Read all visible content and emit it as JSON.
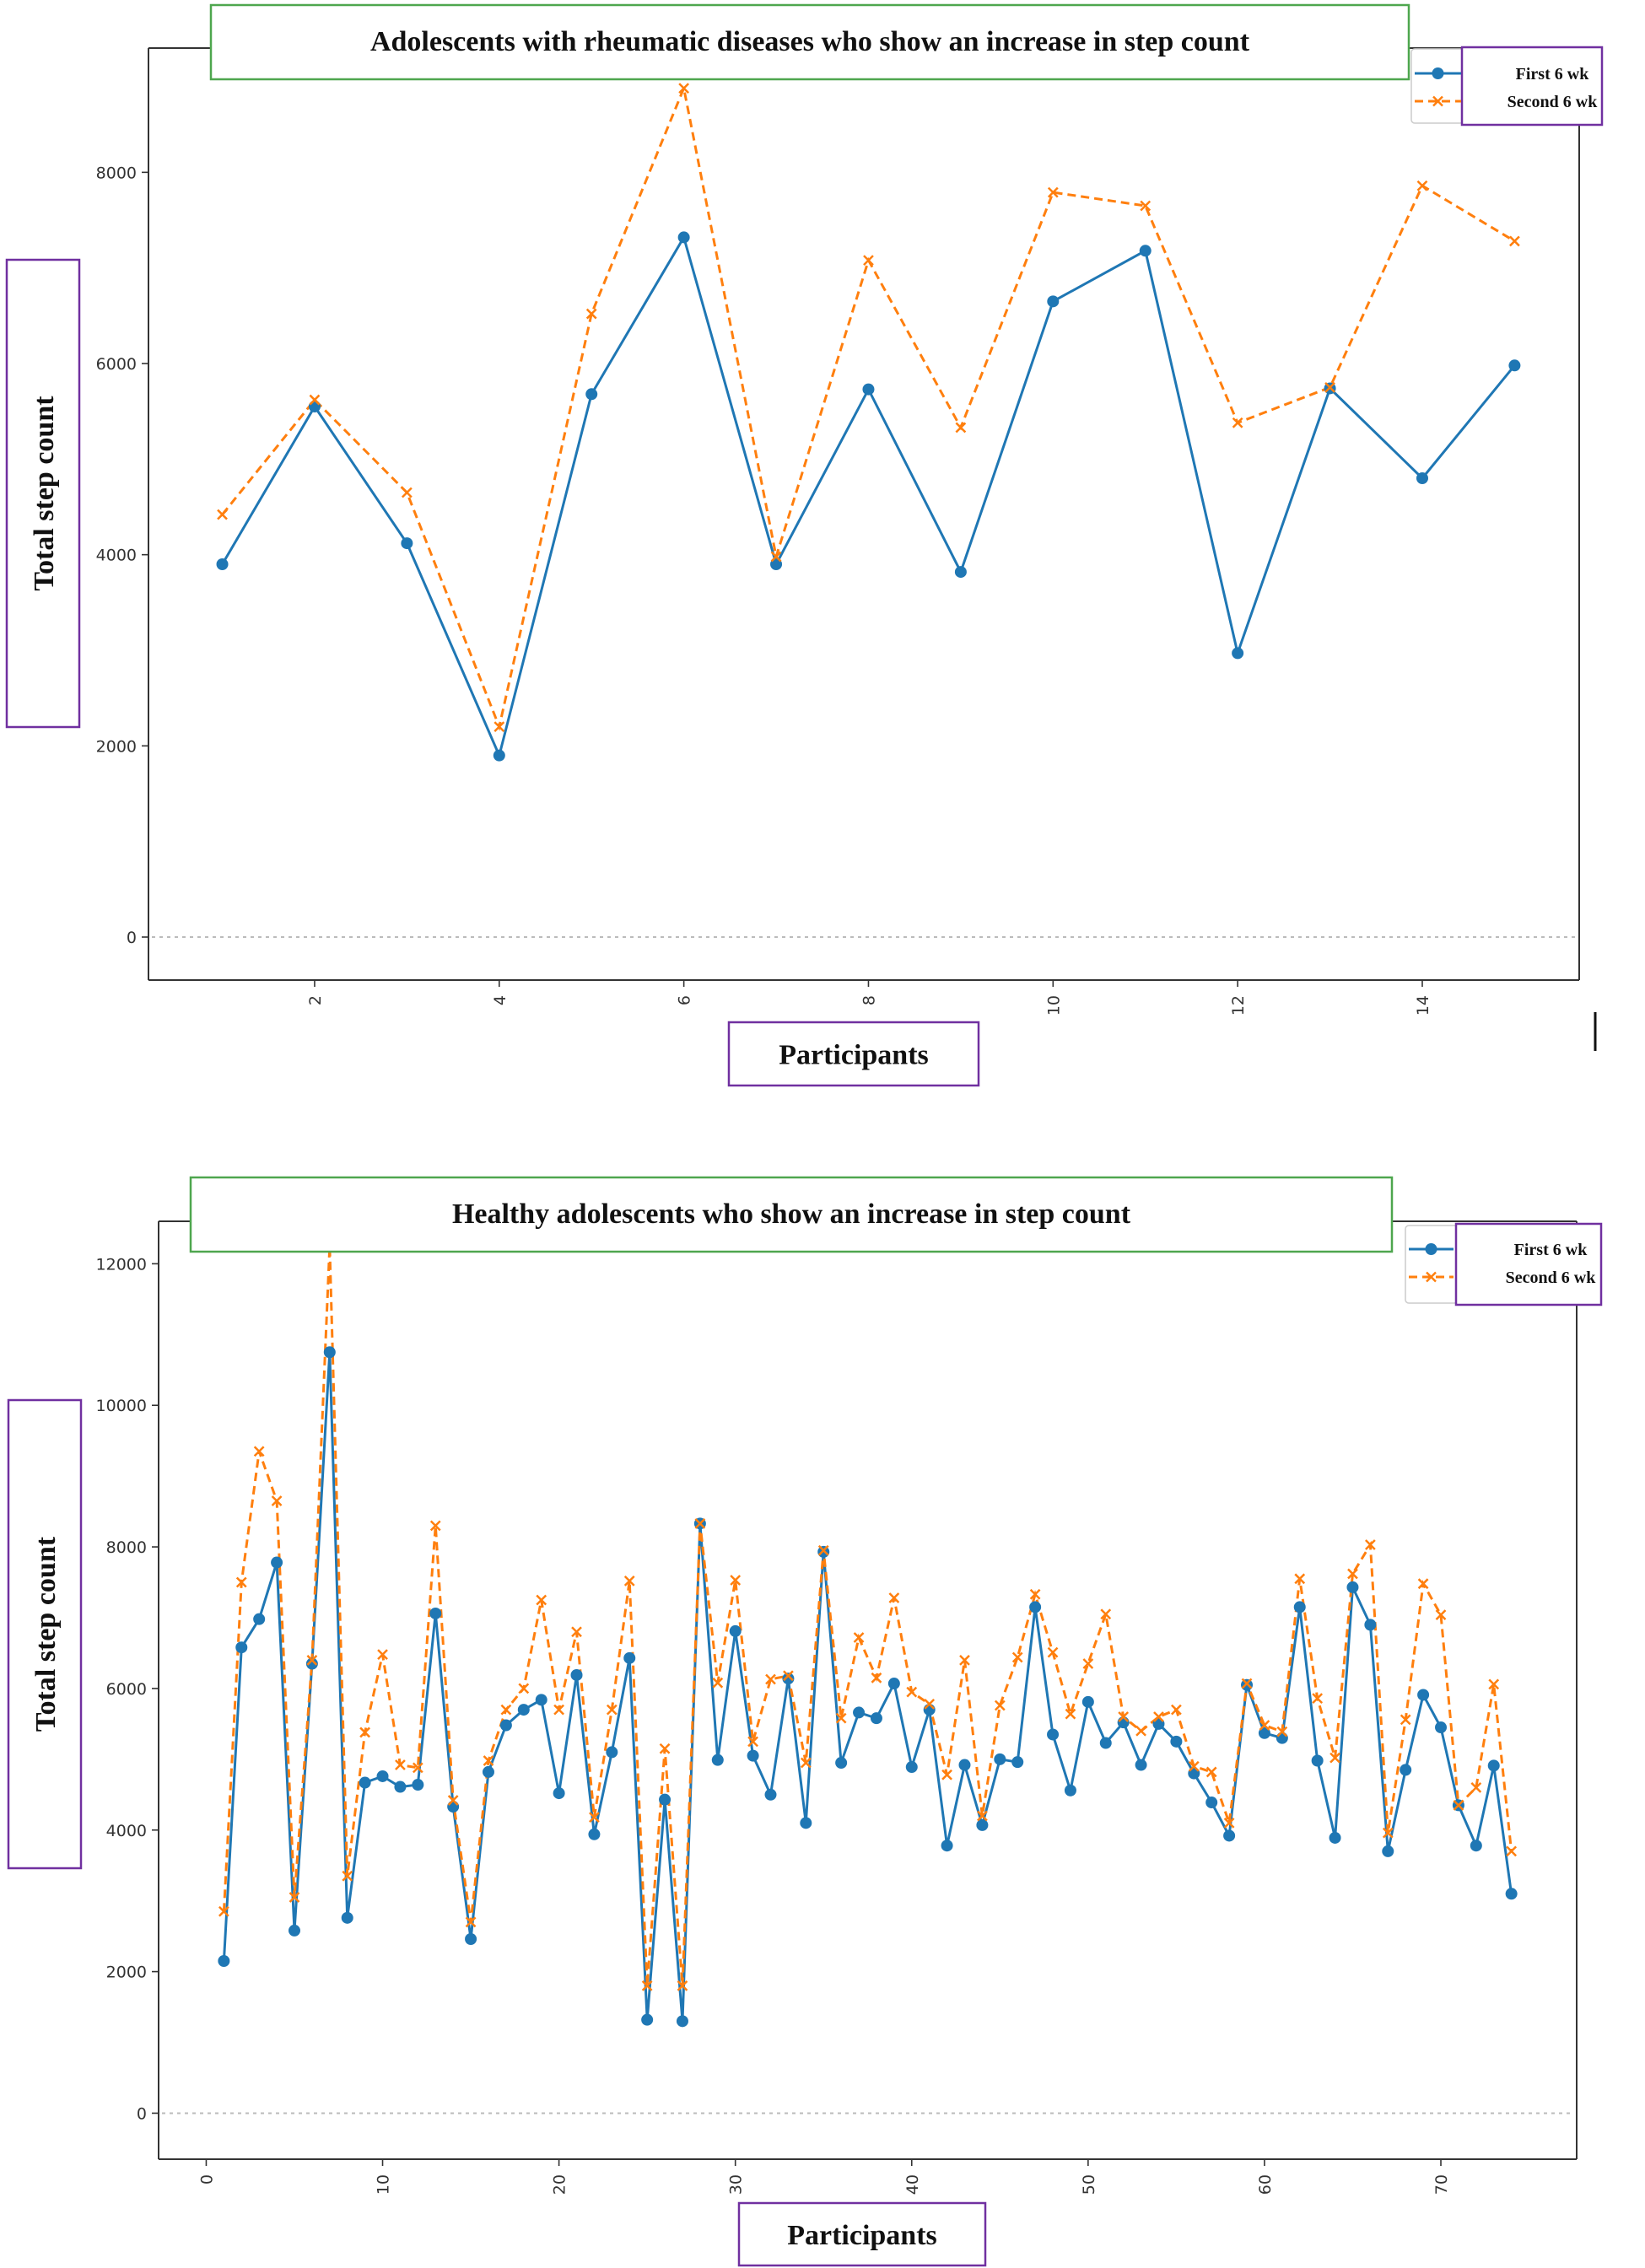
{
  "colors": {
    "first": "#1f77b4",
    "second": "#ff7f0e",
    "title_border": "#4ea64e",
    "label_border": "#7030a0"
  },
  "chart_data": [
    {
      "type": "line",
      "title": "Adolescents with rheumatic diseases who show an increase in step count",
      "xlabel": "Participants",
      "ylabel": "Total step count",
      "xlim": [
        0.2,
        15.7
      ],
      "ylim": [
        -450,
        9300
      ],
      "xticks": [
        2,
        4,
        6,
        8,
        10,
        12,
        14
      ],
      "yticks": [
        0,
        2000,
        4000,
        6000,
        8000
      ],
      "grid": false,
      "legend_position": "top-right",
      "x": [
        1,
        2,
        3,
        4,
        5,
        6,
        7,
        8,
        9,
        10,
        11,
        12,
        13,
        14,
        15
      ],
      "series": [
        {
          "name": "First 6 wk",
          "values": [
            3900,
            5550,
            4120,
            1900,
            5680,
            7320,
            3900,
            5730,
            3820,
            6650,
            7180,
            2970,
            5740,
            4800,
            5980
          ]
        },
        {
          "name": "Second 6 wk",
          "values": [
            4420,
            5620,
            4650,
            2200,
            6520,
            8880,
            3980,
            7080,
            5330,
            7790,
            7650,
            5380,
            5750,
            7860,
            7280
          ]
        }
      ]
    },
    {
      "type": "line",
      "title": "Healthy adolescents who show an increase in step count",
      "xlabel": "Participants",
      "ylabel": "Total step count",
      "xlim": [
        -2.7,
        77.7
      ],
      "ylim": [
        -650,
        12600
      ],
      "xticks": [
        0,
        10,
        20,
        30,
        40,
        50,
        60,
        70
      ],
      "yticks": [
        0,
        2000,
        4000,
        6000,
        8000,
        10000,
        12000
      ],
      "grid": false,
      "legend_position": "top-right",
      "x": [
        1,
        2,
        3,
        4,
        5,
        6,
        7,
        8,
        9,
        10,
        11,
        12,
        13,
        14,
        15,
        16,
        17,
        18,
        19,
        20,
        21,
        22,
        23,
        24,
        25,
        26,
        27,
        28,
        29,
        30,
        31,
        32,
        33,
        34,
        35,
        36,
        37,
        38,
        39,
        40,
        41,
        42,
        43,
        44,
        45,
        46,
        47,
        48,
        49,
        50,
        51,
        52,
        53,
        54,
        55,
        56,
        57,
        58,
        59,
        60,
        61,
        62,
        63,
        64,
        65,
        66,
        67,
        68,
        69,
        70,
        71,
        72,
        73,
        74
      ],
      "series": [
        {
          "name": "First 6 wk",
          "values": [
            2150,
            6580,
            6980,
            7780,
            2580,
            6350,
            10750,
            2760,
            4670,
            4760,
            4610,
            4640,
            7060,
            4330,
            2460,
            4820,
            5480,
            5700,
            5840,
            4520,
            6190,
            3940,
            5100,
            6430,
            1320,
            4430,
            1300,
            8330,
            4990,
            6810,
            5050,
            4500,
            6140,
            4100,
            7930,
            4950,
            5660,
            5580,
            6070,
            4890,
            5700,
            3780,
            4920,
            4070,
            5000,
            4960,
            7150,
            5350,
            4560,
            5810,
            5230,
            5520,
            4920,
            5500,
            5250,
            4800,
            4390,
            3920,
            6050,
            5370,
            5300,
            7150,
            4980,
            3890,
            7430,
            6900,
            3700,
            4850,
            5910,
            5450,
            4350,
            3780,
            4910,
            3100
          ]
        },
        {
          "name": "Second 6 wk",
          "values": [
            2850,
            7500,
            9350,
            8650,
            3050,
            6400,
            12250,
            3350,
            5380,
            6480,
            4920,
            4880,
            8300,
            4420,
            2700,
            4980,
            5700,
            6000,
            7250,
            5700,
            6800,
            4180,
            5700,
            7520,
            1800,
            5150,
            1800,
            8330,
            6080,
            7530,
            5250,
            6130,
            6180,
            4950,
            7950,
            5580,
            6720,
            6150,
            7280,
            5950,
            5780,
            4780,
            6400,
            4200,
            5760,
            6440,
            7330,
            6510,
            5640,
            6350,
            7050,
            5600,
            5400,
            5600,
            5700,
            4900,
            4820,
            4100,
            6070,
            5480,
            5390,
            7550,
            5860,
            5020,
            7620,
            8030,
            3960,
            5560,
            7480,
            7040,
            4350,
            4600,
            6060,
            3700
          ]
        }
      ]
    }
  ]
}
